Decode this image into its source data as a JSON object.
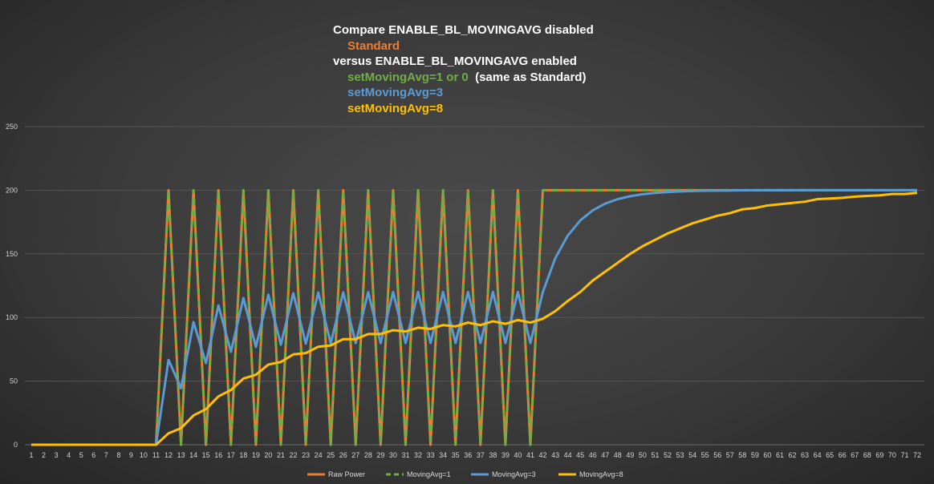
{
  "chart_data": {
    "type": "line",
    "title_lines": [
      {
        "text": "Compare ENABLE_BL_MOVINGAVG disabled",
        "color": "#ffffff",
        "indent": false
      },
      {
        "text": "Standard",
        "color": "#ed7d31",
        "indent": true
      },
      {
        "text": "versus ENABLE_BL_MOVINGAVG enabled",
        "color": "#ffffff",
        "indent": false
      },
      {
        "text": "setMovingAvg=1 or 0",
        "suffix": "  (same as Standard)",
        "color": "#70ad47",
        "indent": true
      },
      {
        "text": "setMovingAvg=3",
        "color": "#5b9bd5",
        "indent": true
      },
      {
        "text": "setMovingAvg=8",
        "color": "#ffc000",
        "indent": true
      }
    ],
    "xlabel": "",
    "ylabel": "",
    "ylim": [
      0,
      250
    ],
    "yticks": [
      0,
      50,
      100,
      150,
      200,
      250
    ],
    "grid": true,
    "legend_position": "bottom",
    "x": [
      1,
      2,
      3,
      4,
      5,
      6,
      7,
      8,
      9,
      10,
      11,
      12,
      13,
      14,
      15,
      16,
      17,
      18,
      19,
      20,
      21,
      22,
      23,
      24,
      25,
      26,
      27,
      28,
      29,
      30,
      31,
      32,
      33,
      34,
      35,
      36,
      37,
      38,
      39,
      40,
      41,
      42,
      43,
      44,
      45,
      46,
      47,
      48,
      49,
      50,
      51,
      52,
      53,
      54,
      55,
      56,
      57,
      58,
      59,
      60,
      61,
      62,
      63,
      64,
      65,
      66,
      67,
      68,
      69,
      70,
      71,
      72
    ],
    "series": [
      {
        "name": "Raw Power",
        "color": "#ed7d31",
        "dashed": false,
        "values": [
          0,
          0,
          0,
          0,
          0,
          0,
          0,
          0,
          0,
          0,
          0,
          200,
          0,
          200,
          0,
          200,
          0,
          200,
          0,
          200,
          0,
          200,
          0,
          200,
          0,
          200,
          0,
          200,
          0,
          200,
          0,
          200,
          0,
          200,
          0,
          200,
          0,
          200,
          0,
          200,
          0,
          200,
          200,
          200,
          200,
          200,
          200,
          200,
          200,
          200,
          200,
          200,
          200,
          200,
          200,
          200,
          200,
          200,
          200,
          200,
          200,
          200,
          200,
          200,
          200,
          200,
          200,
          200,
          200,
          200,
          200,
          200
        ]
      },
      {
        "name": "MovingAvg=1",
        "color": "#70ad47",
        "dashed": true,
        "values": [
          0,
          0,
          0,
          0,
          0,
          0,
          0,
          0,
          0,
          0,
          0,
          200,
          0,
          200,
          0,
          200,
          0,
          200,
          0,
          200,
          0,
          200,
          0,
          200,
          0,
          200,
          0,
          200,
          0,
          200,
          0,
          200,
          0,
          200,
          0,
          200,
          0,
          200,
          0,
          200,
          0,
          200,
          200,
          200,
          200,
          200,
          200,
          200,
          200,
          200,
          200,
          200,
          200,
          200,
          200,
          200,
          200,
          200,
          200,
          200,
          200,
          200,
          200,
          200,
          200,
          200,
          200,
          200,
          200,
          200,
          200,
          200
        ]
      },
      {
        "name": "MovingAvg=3",
        "color": "#5b9bd5",
        "dashed": false,
        "values": [
          0,
          0,
          0,
          0,
          0,
          0,
          0,
          0,
          0,
          0,
          0,
          66.7,
          44.4,
          96.3,
          64.2,
          109.5,
          73,
          115.3,
          76.9,
          117.9,
          78.6,
          119,
          79.4,
          119.6,
          79.7,
          119.8,
          79.9,
          119.9,
          79.9,
          120,
          80,
          120,
          80,
          120,
          80,
          120,
          80,
          120,
          80,
          120,
          80,
          120,
          146.7,
          164.4,
          176.3,
          184.2,
          189.5,
          193,
          195.3,
          196.9,
          197.9,
          198.6,
          199.1,
          199.4,
          199.6,
          199.7,
          199.8,
          199.9,
          200,
          200,
          200,
          200,
          200,
          200,
          200,
          200,
          200,
          200,
          200,
          200,
          200,
          200
        ]
      },
      {
        "name": "MovingAvg=8",
        "color": "#ffc000",
        "dashed": false,
        "values": [
          0,
          0,
          0,
          0,
          0,
          0,
          0,
          0,
          0,
          0,
          0,
          9,
          13,
          23,
          28,
          38,
          43,
          52,
          55,
          63,
          65,
          71,
          72,
          77,
          78,
          83,
          83,
          87,
          87,
          90,
          89,
          92,
          91,
          94,
          93,
          96,
          94,
          97,
          95,
          98,
          96,
          99,
          105,
          113,
          120,
          129,
          136,
          143,
          150,
          156,
          161,
          166,
          170,
          174,
          177,
          180,
          182,
          185,
          186,
          188,
          189,
          190,
          191,
          193,
          193.5,
          194,
          195,
          195.5,
          196,
          197,
          197,
          198
        ]
      }
    ]
  }
}
